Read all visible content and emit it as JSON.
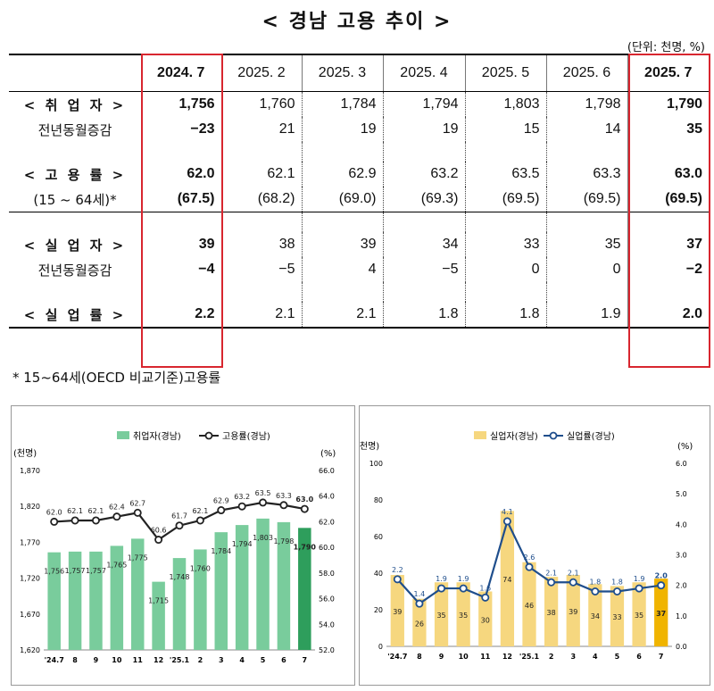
{
  "title": "< 경남 고용 추이 >",
  "unit": "(단위: 천명, %)",
  "table": {
    "columns": [
      "2024. 7",
      "2025. 2",
      "2025. 3",
      "2025. 4",
      "2025. 5",
      "2025. 6",
      "2025. 7"
    ],
    "rows": [
      {
        "label": "< 취 업 자 >",
        "bold": true,
        "values": [
          "1,756",
          "1,760",
          "1,784",
          "1,794",
          "1,803",
          "1,798",
          "1,790"
        ]
      },
      {
        "label": "전년동월증감",
        "bold": false,
        "values": [
          "−23",
          "21",
          "19",
          "19",
          "15",
          "14",
          "35"
        ]
      },
      {
        "label": "< 고 용 률 >",
        "bold": true,
        "values": [
          "62.0",
          "62.1",
          "62.9",
          "63.2",
          "63.5",
          "63.3",
          "63.0"
        ]
      },
      {
        "label": "(15 ~ 64세)*",
        "bold": false,
        "values": [
          "(67.5)",
          "(68.2)",
          "(69.0)",
          "(69.3)",
          "(69.5)",
          "(69.5)",
          "(69.5)"
        ]
      },
      {
        "label": "< 실 업 자 >",
        "bold": true,
        "values": [
          "39",
          "38",
          "39",
          "34",
          "33",
          "35",
          "37"
        ]
      },
      {
        "label": "전년동월증감",
        "bold": false,
        "values": [
          "−4",
          "−5",
          "4",
          "−5",
          "0",
          "0",
          "−2"
        ]
      },
      {
        "label": "< 실 업 률 >",
        "bold": true,
        "values": [
          "2.2",
          "2.1",
          "2.1",
          "1.8",
          "1.8",
          "1.9",
          "2.0"
        ]
      }
    ]
  },
  "footnote": "* 15~64세(OECD 비교기준)고용률",
  "chart_data": [
    {
      "type": "bar",
      "categories": [
        "'24.7",
        "8",
        "9",
        "10",
        "11",
        "12",
        "'25.1",
        "2",
        "3",
        "4",
        "5",
        "6",
        "7"
      ],
      "ylabel_left": "(천명)",
      "ylabel_right": "(%)",
      "ylim_left": [
        1620,
        1870
      ],
      "yticks_left": [
        "1,620",
        "1,670",
        "1,720",
        "1,770",
        "1,820",
        "1,870"
      ],
      "ylim_right": [
        52.0,
        66.0
      ],
      "yticks_right": [
        "52.0",
        "54.0",
        "56.0",
        "58.0",
        "60.0",
        "62.0",
        "64.0",
        "66.0"
      ],
      "series": [
        {
          "name": "취업자(경남)",
          "kind": "bar",
          "color": "#79cc9c",
          "highlight_color": "#2e9e5c",
          "values": [
            1756,
            1757,
            1757,
            1765,
            1775,
            1715,
            1748,
            1760,
            1784,
            1794,
            1803,
            1798,
            1790
          ],
          "labels": [
            "1,756",
            "1,757",
            "1,757",
            "1,765",
            "1,775",
            "1,715",
            "1,748",
            "1,760",
            "1,784",
            "1,794",
            "1,803",
            "1,798",
            "1,790"
          ]
        },
        {
          "name": "고용률(경남)",
          "kind": "line",
          "color": "#222222",
          "values": [
            62.0,
            62.1,
            62.1,
            62.4,
            62.7,
            60.6,
            61.7,
            62.1,
            62.9,
            63.2,
            63.5,
            63.3,
            63.0
          ],
          "labels": [
            "62.0",
            "62.1",
            "62.1",
            "62.4",
            "62.7",
            "60.6",
            "61.7",
            "62.1",
            "62.9",
            "63.2",
            "63.5",
            "63.3",
            "63.0"
          ]
        }
      ]
    },
    {
      "type": "bar",
      "categories": [
        "'24.7",
        "8",
        "9",
        "10",
        "11",
        "12",
        "'25.1",
        "2",
        "3",
        "4",
        "5",
        "6",
        "7"
      ],
      "ylabel_left": "(천명)",
      "ylabel_right": "(%)",
      "ylim_left": [
        0,
        100
      ],
      "yticks_left": [
        "0",
        "20",
        "40",
        "60",
        "80",
        "100"
      ],
      "ylim_right": [
        0.0,
        6.0
      ],
      "yticks_right": [
        "0.0",
        "1.0",
        "2.0",
        "3.0",
        "4.0",
        "5.0",
        "6.0"
      ],
      "series": [
        {
          "name": "실업자(경남)",
          "kind": "bar",
          "color": "#f6d77f",
          "highlight_color": "#f0b400",
          "values": [
            39,
            26,
            35,
            35,
            30,
            74,
            46,
            38,
            39,
            34,
            33,
            35,
            37
          ],
          "labels": [
            "39",
            "26",
            "35",
            "35",
            "30",
            "74",
            "46",
            "38",
            "39",
            "34",
            "33",
            "35",
            "37"
          ]
        },
        {
          "name": "실업률(경남)",
          "kind": "line",
          "color": "#1f4e8c",
          "values": [
            2.2,
            1.4,
            1.9,
            1.9,
            1.6,
            4.1,
            2.6,
            2.1,
            2.1,
            1.8,
            1.8,
            1.9,
            2.0
          ],
          "labels": [
            "2.2",
            "1.4",
            "1.9",
            "1.9",
            "1.6",
            "4.1",
            "2.6",
            "2.1",
            "2.1",
            "1.8",
            "1.8",
            "1.9",
            "2.0"
          ]
        }
      ]
    }
  ]
}
